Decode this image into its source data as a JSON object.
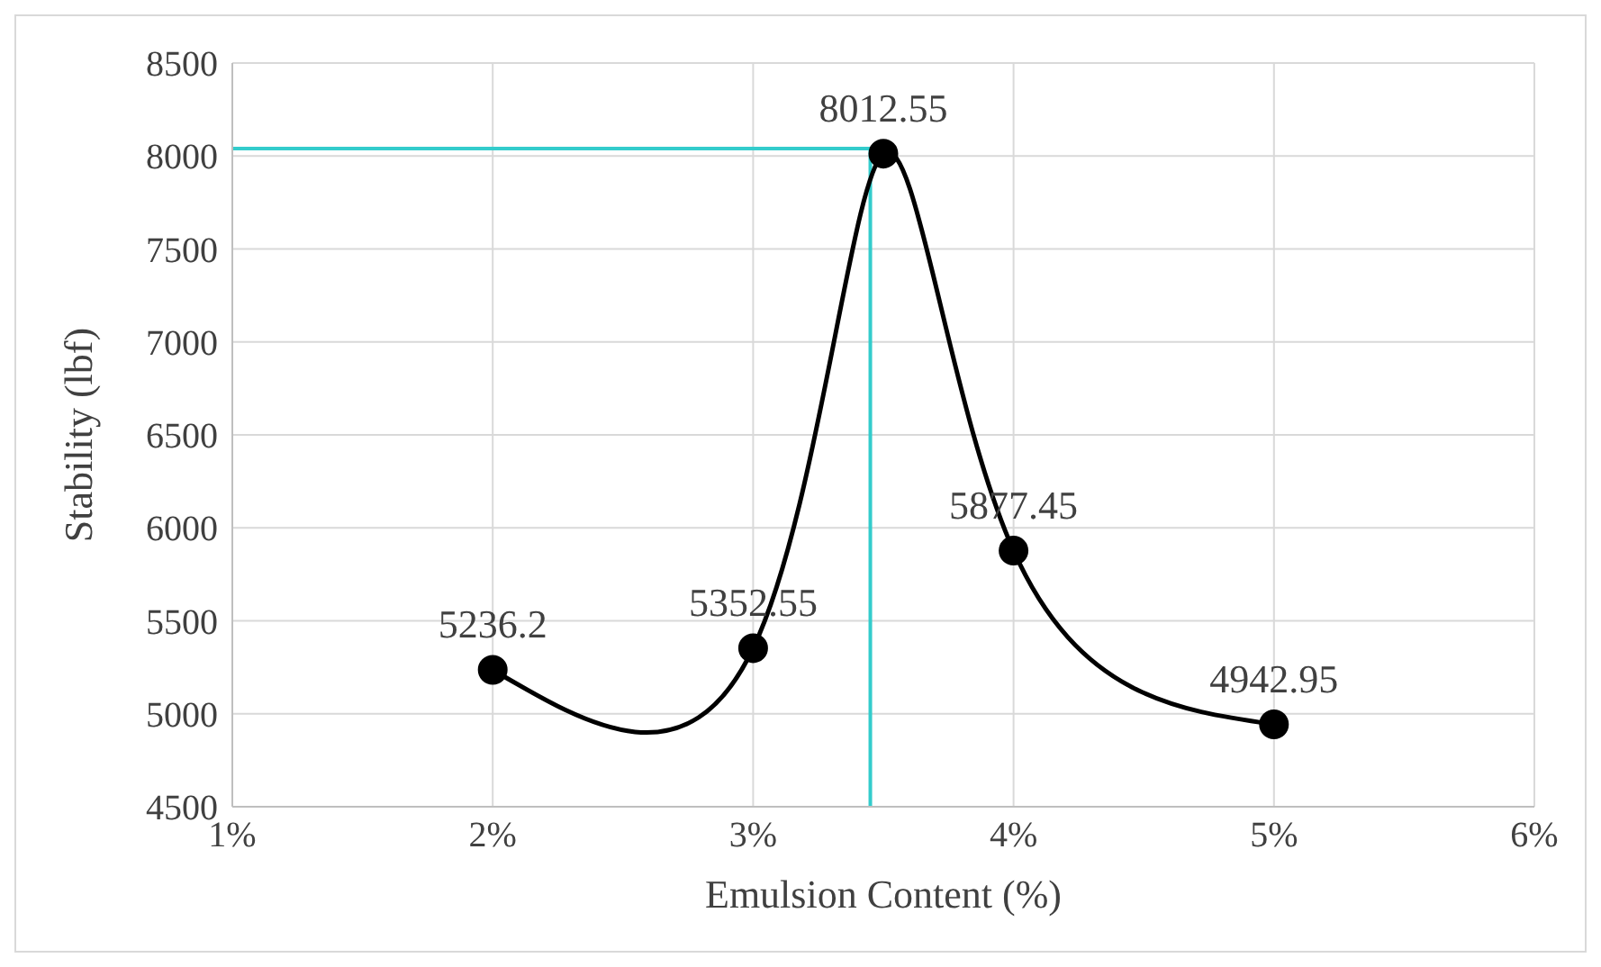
{
  "chart_data": {
    "type": "line",
    "xlabel": "Emulsion Content (%)",
    "ylabel": "Stability (lbf)",
    "x": [
      2,
      3,
      3.5,
      4,
      5
    ],
    "series": [
      {
        "color": "#000000",
        "values": [
          5236.2,
          5352.55,
          8012.55,
          5877.45,
          4942.95
        ]
      }
    ],
    "xlim": [
      1,
      6
    ],
    "xticks": [
      {
        "value": 1,
        "label": "1%"
      },
      {
        "value": 2,
        "label": "2%"
      },
      {
        "value": 3,
        "label": "3%"
      },
      {
        "value": 4,
        "label": "4%"
      },
      {
        "value": 5,
        "label": "5%"
      },
      {
        "value": 6,
        "label": "6%"
      }
    ],
    "ylim": [
      4500,
      8500
    ],
    "yticks": [
      4500,
      5000,
      5500,
      6000,
      6500,
      7000,
      7500,
      8000,
      8500
    ],
    "grid": true,
    "marker": "circle",
    "data_labels": true,
    "ref_lines": [
      {
        "axis": "x",
        "value": 3.45,
        "color": "#33cccc"
      },
      {
        "axis": "y",
        "value": 8040,
        "color": "#33cccc"
      }
    ]
  }
}
